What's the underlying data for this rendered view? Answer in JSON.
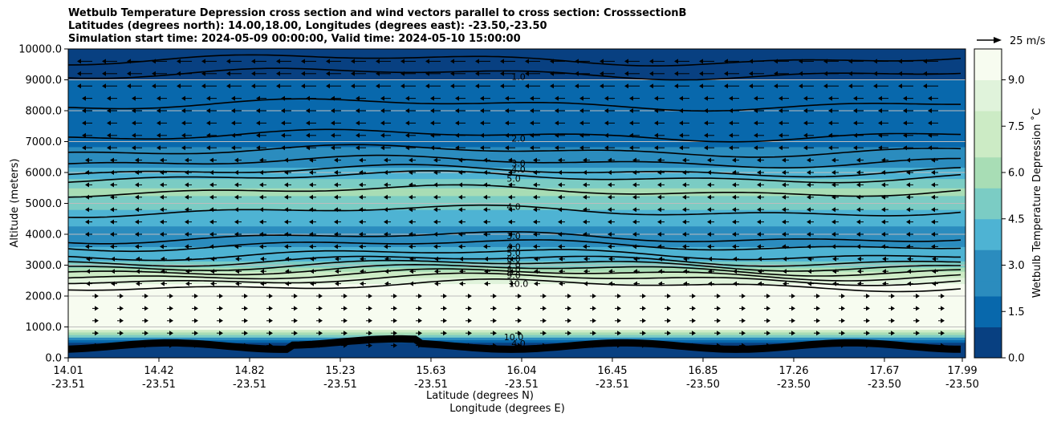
{
  "chart_data": {
    "type": "contour",
    "title_lines": [
      "Wetbulb Temperature Depression cross section and wind vectors parallel to cross section: CrosssectionB",
      "Latitudes (degrees north): 14.00,18.00, Longitudes (degrees east): -23.50,-23.50",
      "Simulation start time: 2024-05-09 00:00:00, Valid time: 2024-05-10 15:00:00"
    ],
    "ylabel": "Altitude (meters)",
    "xlabel_lat": "Latitude (degrees N)",
    "xlabel_lon": "Longitude (degrees E)",
    "ylim": [
      0,
      10000
    ],
    "yticks": [
      "0.0",
      "1000.0",
      "2000.0",
      "3000.0",
      "4000.0",
      "5000.0",
      "6000.0",
      "7000.0",
      "8000.0",
      "9000.0",
      "10000.0"
    ],
    "yticks_values": [
      0,
      1000,
      2000,
      3000,
      4000,
      5000,
      6000,
      7000,
      8000,
      9000,
      10000
    ],
    "xticks_lat": [
      "14.01",
      "14.42",
      "14.82",
      "15.23",
      "15.63",
      "16.04",
      "16.45",
      "16.85",
      "17.26",
      "17.67",
      "17.99"
    ],
    "xticks_lon": [
      "-23.51",
      "-23.51",
      "-23.51",
      "-23.51",
      "-23.51",
      "-23.51",
      "-23.51",
      "-23.50",
      "-23.50",
      "-23.50",
      "-23.50"
    ],
    "colorbar": {
      "label": "Wetbulb Temperature Depression ˚C",
      "range": [
        0,
        10
      ],
      "ticks": [
        "0.0",
        "1.5",
        "3.0",
        "4.5",
        "6.0",
        "7.5",
        "9.0"
      ],
      "tick_values": [
        0,
        1.5,
        3.0,
        4.5,
        6.0,
        7.5,
        9.0
      ]
    },
    "wind_key": "25 m/s",
    "grid": true,
    "contour_labels": [
      "1.0",
      "2.0",
      "3.0",
      "4.0",
      "5.0",
      "4.0",
      "3.0",
      "4.0",
      "5.0",
      "6.0",
      "7.0",
      "8.0",
      "9.0",
      "10.0",
      "10.0",
      "4.0",
      "1.0"
    ],
    "depression_profile": [
      {
        "alt": 0,
        "value": 1.0
      },
      {
        "alt": 500,
        "value": 1.0
      },
      {
        "alt": 1000,
        "value": 10
      },
      {
        "alt": 2000,
        "value": 10
      },
      {
        "alt": 2400,
        "value": 9.0
      },
      {
        "alt": 2800,
        "value": 6.5
      },
      {
        "alt": 3200,
        "value": 4.0
      },
      {
        "alt": 3800,
        "value": 3.0
      },
      {
        "alt": 4500,
        "value": 3.5
      },
      {
        "alt": 5400,
        "value": 6.0
      },
      {
        "alt": 6000,
        "value": 3.5
      },
      {
        "alt": 7000,
        "value": 2.0
      },
      {
        "alt": 8500,
        "value": 1.5
      },
      {
        "alt": 10000,
        "value": 0.5
      }
    ]
  }
}
